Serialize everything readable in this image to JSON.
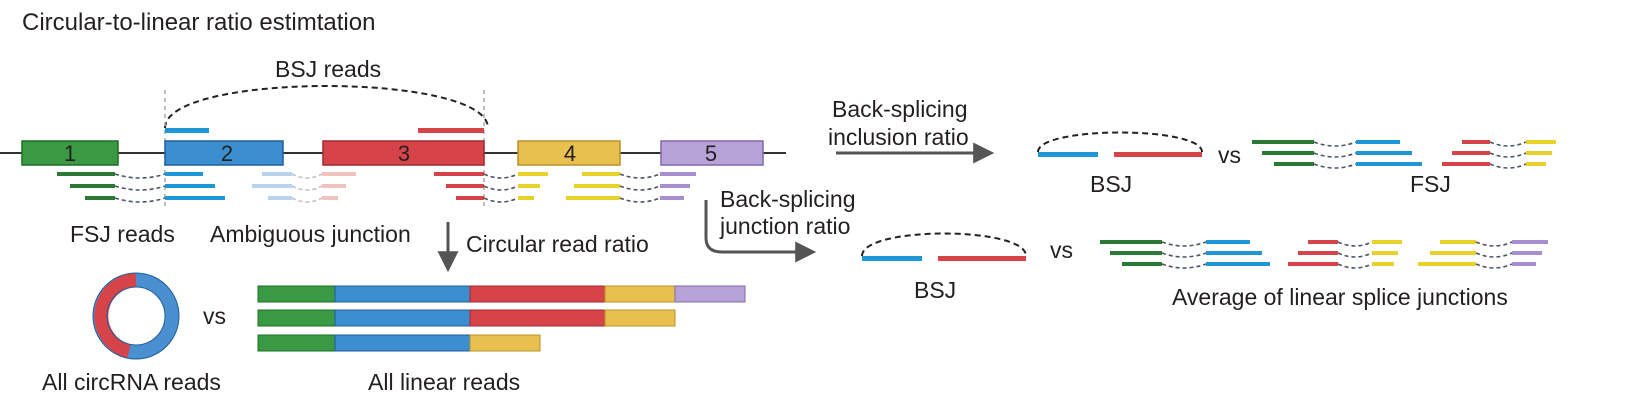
{
  "title": "Circular-to-linear ratio estimtation",
  "labels": {
    "bsj_reads": "BSJ reads",
    "fsj_reads": "FSJ reads",
    "ambiguous": "Ambiguous junction",
    "circular_ratio": "Circular read ratio",
    "bs_inclusion_line1": "Back-splicing",
    "bs_inclusion_line2": "inclusion ratio",
    "bs_junction_line1": "Back-splicing",
    "bs_junction_line2": "junction ratio",
    "bsj_top": "BSJ",
    "fsj": "FSJ",
    "vs_top": "vs",
    "bsj_mid": "BSJ",
    "vs_mid": "vs",
    "avg_linear": "Average of linear splice junctions",
    "vs_bottom": "vs",
    "all_circ": "All circRNA reads",
    "all_linear": "All linear reads"
  },
  "exons": [
    {
      "label": "1",
      "color": "#3a9a43"
    },
    {
      "label": "2",
      "color": "#3b8fd1"
    },
    {
      "label": "3",
      "color": "#d6444a"
    },
    {
      "label": "4",
      "color": "#e8c04f"
    },
    {
      "label": "5",
      "color": "#b7a3d8"
    }
  ],
  "colors": {
    "green": "#3a9a43",
    "green_dark": "#2a7a33",
    "blue": "#1f96d6",
    "blue_exon": "#3b8fd1",
    "red": "#d6444a",
    "yellow": "#e8d22a",
    "yellow_exon": "#e8c04f",
    "purple": "#a68fd0",
    "faded_blue": "#b9d3ec",
    "faded_red": "#f0c2bd",
    "line": "#333333",
    "dash": "#4a5566",
    "arrow": "#555555"
  }
}
